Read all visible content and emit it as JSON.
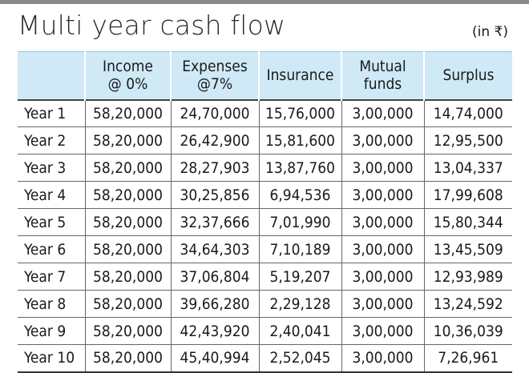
{
  "title": "Multi year cash flow",
  "unit_note": "(in ₹)",
  "chart_data": {
    "type": "table",
    "title": "Multi year cash flow",
    "unit": "(in ₹)",
    "columns": [
      {
        "line1": "",
        "line2": ""
      },
      {
        "line1": "Income",
        "line2": "@ 0%"
      },
      {
        "line1": "Expenses",
        "line2": "@7%"
      },
      {
        "line1": "Insurance",
        "line2": ""
      },
      {
        "line1": "Mutual",
        "line2": "funds"
      },
      {
        "line1": "Surplus",
        "line2": ""
      }
    ],
    "rows": [
      [
        "Year 1",
        "58,20,000",
        "24,70,000",
        "15,76,000",
        "3,00,000",
        "14,74,000"
      ],
      [
        "Year 2",
        "58,20,000",
        "26,42,900",
        "15,81,600",
        "3,00,000",
        "12,95,500"
      ],
      [
        "Year 3",
        "58,20,000",
        "28,27,903",
        "13,87,760",
        "3,00,000",
        "13,04,337"
      ],
      [
        "Year 4",
        "58,20,000",
        "30,25,856",
        "6,94,536",
        "3,00,000",
        "17,99,608"
      ],
      [
        "Year 5",
        "58,20,000",
        "32,37,666",
        "7,01,990",
        "3,00,000",
        "15,80,344"
      ],
      [
        "Year 6",
        "58,20,000",
        "34,64,303",
        "7,10,189",
        "3,00,000",
        "13,45,509"
      ],
      [
        "Year 7",
        "58,20,000",
        "37,06,804",
        "5,19,207",
        "3,00,000",
        "12,93,989"
      ],
      [
        "Year 8",
        "58,20,000",
        "39,66,280",
        "2,29,128",
        "3,00,000",
        "13,24,592"
      ],
      [
        "Year 9",
        "58,20,000",
        "42,43,920",
        "2,40,041",
        "3,00,000",
        "10,36,039"
      ],
      [
        "Year 10",
        "58,20,000",
        "45,40,994",
        "2,52,045",
        "3,00,000",
        "7,26,961"
      ]
    ]
  },
  "colors": {
    "header_bg": "#cfe9f6",
    "top_rule": "#8a8a8a",
    "grid": "#666666"
  }
}
